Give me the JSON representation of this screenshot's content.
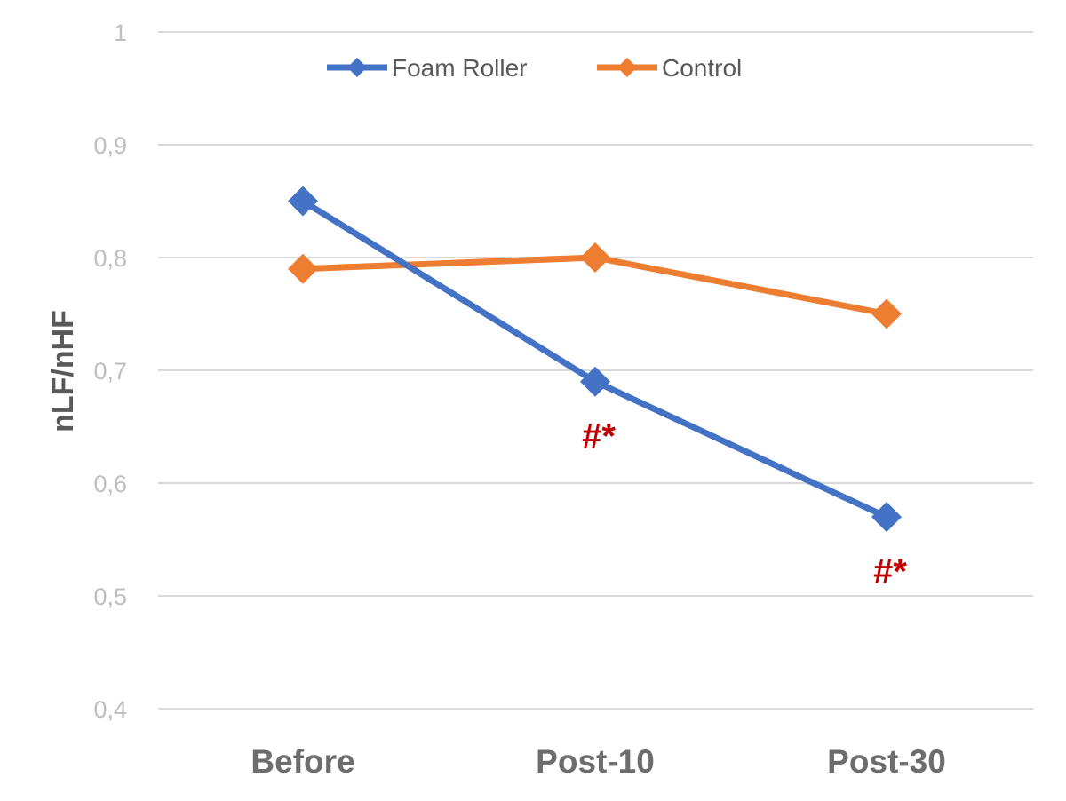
{
  "chart_data": {
    "type": "line",
    "title": "",
    "xlabel": "",
    "ylabel": "nLF/nHF",
    "categories": [
      "Before",
      "Post-10",
      "Post-30"
    ],
    "yticks": [
      "0,4",
      "0,5",
      "0,6",
      "0,7",
      "0,8",
      "0,9",
      "1"
    ],
    "ylim": [
      0.4,
      1.0
    ],
    "grid": true,
    "legend_position": "top",
    "series": [
      {
        "name": "Foam Roller",
        "color": "#4472c4",
        "marker": "diamond",
        "values": [
          0.85,
          0.69,
          0.57
        ]
      },
      {
        "name": "Control",
        "color": "#ed7d31",
        "marker": "diamond",
        "values": [
          0.79,
          0.8,
          0.75
        ]
      }
    ],
    "annotations": [
      {
        "text": "#*",
        "category": "Post-10",
        "series": "Foam Roller"
      },
      {
        "text": "#*",
        "category": "Post-30",
        "series": "Foam Roller"
      }
    ]
  }
}
